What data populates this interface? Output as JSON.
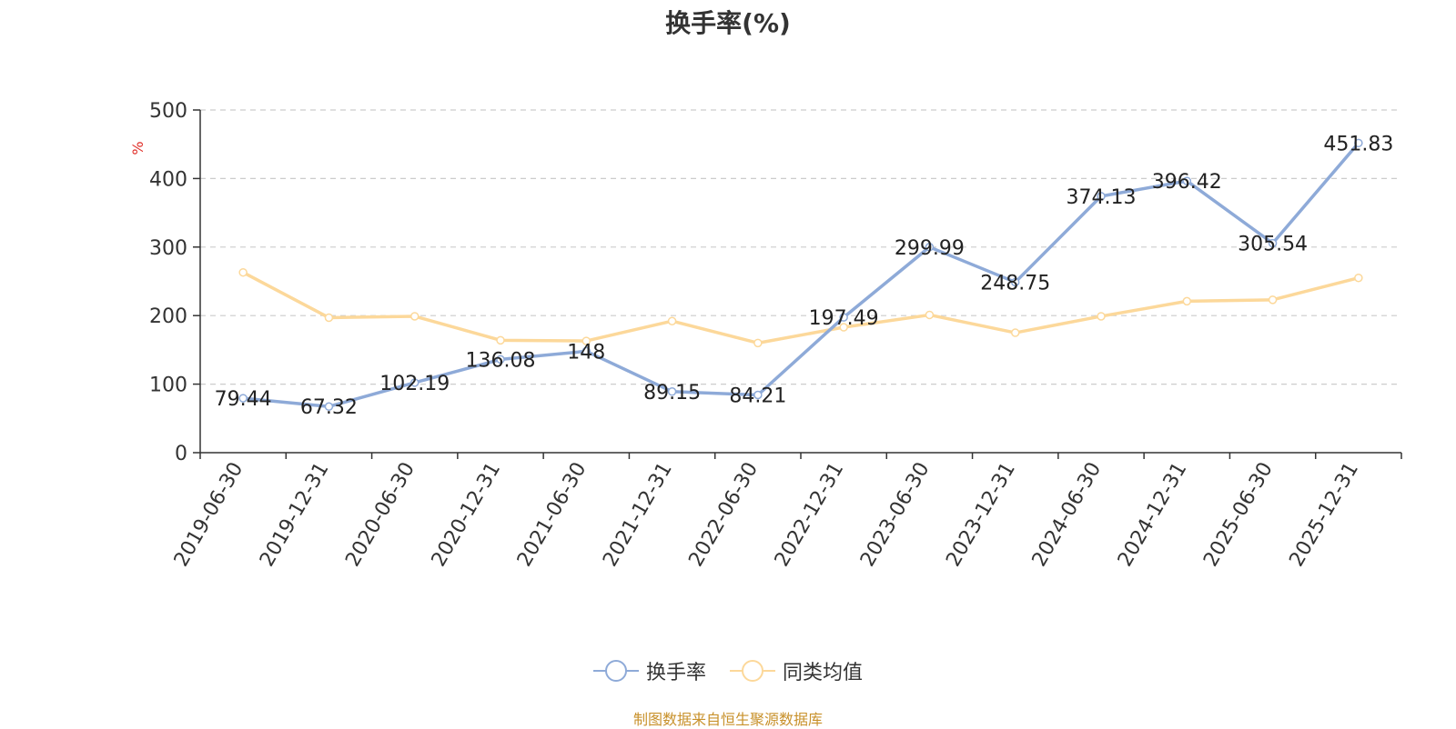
{
  "chart_data": {
    "type": "line",
    "title": "换手率(%)",
    "ylabel": "%",
    "ylim": [
      0,
      500
    ],
    "yticks": [
      0,
      100,
      200,
      300,
      400,
      500
    ],
    "grid": true,
    "legend_position": "bottom-center",
    "categories": [
      "2019-06-30",
      "2019-12-31",
      "2020-06-30",
      "2020-12-31",
      "2021-06-30",
      "2021-12-31",
      "2022-06-30",
      "2022-12-31",
      "2023-06-30",
      "2023-12-31",
      "2024-06-30",
      "2024-12-31",
      "2025-06-30",
      "2025-12-31"
    ],
    "series": [
      {
        "name": "换手率",
        "color": "#8eaad8",
        "values": [
          79.44,
          67.32,
          102.19,
          136.08,
          148,
          89.15,
          84.21,
          197.49,
          299.99,
          248.75,
          374.13,
          396.42,
          305.54,
          451.83
        ],
        "labels": [
          "79.44",
          "67.32",
          "102.19",
          "136.08",
          "148",
          "89.15",
          "84.21",
          "197.49",
          "299.99",
          "248.75",
          "374.13",
          "396.42",
          "305.54",
          "451.83"
        ]
      },
      {
        "name": "同类均值",
        "color": "#fcd89a",
        "values": [
          263,
          197,
          199,
          164,
          163,
          192,
          160,
          183,
          201,
          175,
          199,
          221,
          223,
          255
        ]
      }
    ]
  },
  "footer": "制图数据来自恒生聚源数据库"
}
